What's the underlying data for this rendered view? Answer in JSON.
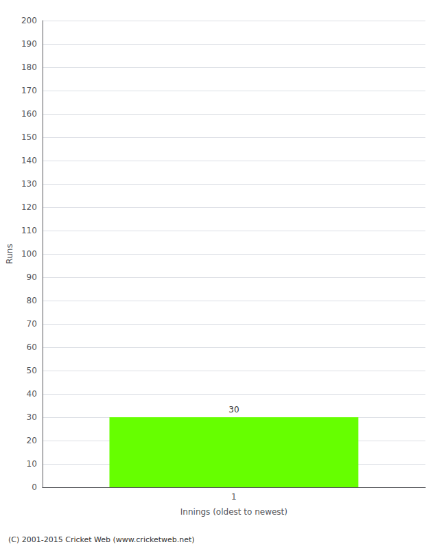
{
  "chart_data": {
    "type": "bar",
    "xlabel": "Innings (oldest to newest)",
    "ylabel": "Runs",
    "categories": [
      "1"
    ],
    "values": [
      30
    ],
    "color": "#66ff00",
    "ylim": [
      0,
      200
    ],
    "yticks": [
      0,
      10,
      20,
      30,
      40,
      50,
      60,
      70,
      80,
      90,
      100,
      110,
      120,
      130,
      140,
      150,
      160,
      170,
      180,
      190,
      200
    ],
    "grid": true,
    "data_labels": true,
    "annotations": [
      "(C) 2001-2015 Cricket Web (www.cricketweb.net)"
    ]
  }
}
